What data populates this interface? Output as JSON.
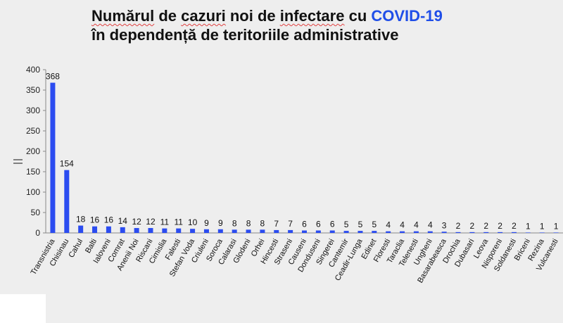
{
  "title": {
    "line1_part1": "Numărul",
    "line1_part2": " de ",
    "line1_part3": "cazuri",
    "line1_part4": " noi de ",
    "line1_part5": "infectare",
    "line1_part6": " cu ",
    "line1_highlight": "COVID-19",
    "line2": "în dependență de teritoriile administrative"
  },
  "colors": {
    "bar": "#2b4cf0",
    "highlight": "#1f4ee8",
    "background": "#eeeeee"
  },
  "chart_data": {
    "type": "bar",
    "categories": [
      "Transnistria",
      "Chisinau",
      "Cahul",
      "Balti",
      "Ialoveni",
      "Comrat",
      "Anenii Noi",
      "Riscani",
      "Cimislia",
      "Falesti",
      "Stefan Voda",
      "Criuleni",
      "Soroca",
      "Calarasi",
      "Glodeni",
      "Orhei",
      "Hincesti",
      "Straseni",
      "Causeni",
      "Donduseni",
      "Singerei",
      "Cantemir",
      "Ceadir-Lunga",
      "Edinet",
      "Floresti",
      "Taraclia",
      "Telenesti",
      "Ungheni",
      "Basarabeasca",
      "Drochia",
      "Dubasari",
      "Leova",
      "Nisporeni",
      "Soldanesti",
      "Briceni",
      "Rezina",
      "Vulcanesti"
    ],
    "values": [
      368,
      154,
      18,
      16,
      16,
      14,
      12,
      12,
      11,
      11,
      10,
      9,
      9,
      8,
      8,
      8,
      7,
      7,
      6,
      6,
      6,
      5,
      5,
      5,
      4,
      4,
      4,
      4,
      3,
      2,
      2,
      2,
      2,
      2,
      1,
      1,
      1
    ],
    "value_labels": [
      "368",
      "154",
      "18",
      "16",
      "16",
      "14",
      "12",
      "12",
      "11",
      "11",
      "10",
      "9",
      "9",
      "8",
      "8",
      "8",
      "7",
      "7",
      "6",
      "6",
      "6",
      "5",
      "5",
      "5",
      "4",
      "4",
      "4",
      "4",
      "3",
      "2",
      "2",
      "2",
      "2",
      "2",
      "1",
      "1",
      "1"
    ],
    "yticks": [
      "0",
      "50",
      "100",
      "150",
      "200",
      "250",
      "300",
      "350",
      "400"
    ],
    "ylim": [
      0,
      400
    ],
    "ylabel": "",
    "xlabel": "",
    "grid": false
  }
}
